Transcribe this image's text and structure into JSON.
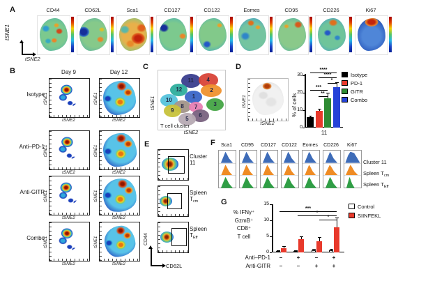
{
  "panels": {
    "a": {
      "label": "A",
      "y_axis": "tSNE1",
      "x_axis": "tSNE2",
      "markers": [
        "CD44",
        "CD62L",
        "Sca1",
        "CD127",
        "CD122",
        "Eomes",
        "CD95",
        "CD226",
        "Ki67"
      ]
    },
    "b": {
      "label": "B",
      "columns": [
        "Day 9",
        "Day 12"
      ],
      "rows": [
        "Isotype",
        "Anti–PD-1",
        "Anti-GITR",
        "Combo"
      ],
      "plot_y_axis": "tSNE1",
      "plot_x_axis": "tSNE2"
    },
    "c": {
      "label": "C",
      "y_axis": "tSNE1",
      "x_axis": "tSNE2",
      "caption": "T cell cluster",
      "clusters": [
        {
          "n": "11",
          "color": "#3a3f8f"
        },
        {
          "n": "4",
          "color": "#d94438"
        },
        {
          "n": "12",
          "color": "#2fae9e"
        },
        {
          "n": "2",
          "color": "#f0922f"
        },
        {
          "n": "1",
          "color": "#3a66c8"
        },
        {
          "n": "10",
          "color": "#57c4dd"
        },
        {
          "n": "3",
          "color": "#45a545"
        },
        {
          "n": "8",
          "color": "#a2948a"
        },
        {
          "n": "7",
          "color": "#e87fb4"
        },
        {
          "n": "9",
          "color": "#c8c23c"
        },
        {
          "n": "6",
          "color": "#7a6380"
        },
        {
          "n": "5",
          "color": "#b7aab4"
        }
      ]
    },
    "d": {
      "label": "D",
      "y_axis": "tSNE1",
      "x_axis": "tSNE2"
    },
    "e": {
      "label": "E",
      "y_axis": "CD44",
      "x_axis": "CD62L",
      "gates": [
        {
          "line1": "Cluster",
          "line2": "11",
          "sub": ""
        },
        {
          "line1": "Spleen",
          "line2": "T",
          "sub": "cm"
        },
        {
          "line1": "Spleen",
          "line2": "T",
          "sub": "Eff"
        }
      ]
    },
    "f": {
      "label": "F",
      "markers": [
        "Sca1",
        "CD95",
        "CD127",
        "CD122",
        "Eomes",
        "CD226",
        "Ki67"
      ],
      "rows": [
        {
          "main": "Cluster 11",
          "sub": ""
        },
        {
          "main": "Spleen T",
          "sub": "cm"
        },
        {
          "main": "Spleen T",
          "sub": "Eff"
        }
      ],
      "row_colors": [
        "#3e6cb8",
        "#ef8c25",
        "#2f9e45"
      ]
    },
    "g": {
      "label": "G",
      "x_rows": [
        "Anti–PD-1",
        "Anti-GITR"
      ]
    }
  },
  "chart_data": [
    {
      "type": "bar",
      "panel": "D",
      "title": "",
      "ylabel": "% of cells",
      "ylim": [
        0,
        30
      ],
      "yticks": [
        "0",
        "10",
        "20",
        "30"
      ],
      "categories": [
        "11"
      ],
      "legend_position": "right",
      "grid": false,
      "series": [
        {
          "name": "Isotype",
          "color": "#000000",
          "value": 6.2,
          "err": 0.5
        },
        {
          "name": "PD-1",
          "color": "#e8392b",
          "value": 9.6,
          "err": 1.2
        },
        {
          "name": "GITR",
          "color": "#2e8b33",
          "value": 16.8,
          "err": 3.2
        },
        {
          "name": "Combo",
          "color": "#2543d8",
          "value": 23.3,
          "err": 2.8
        }
      ],
      "significance": [
        {
          "label": "****",
          "pair": "Isotype-Combo"
        },
        {
          "label": "****",
          "pair": "PD-1-Combo"
        },
        {
          "label": "*",
          "pair": "GITR-Combo"
        },
        {
          "label": "***",
          "pair": "Isotype-GITR"
        },
        {
          "label": "**",
          "pair": "PD-1-GITR"
        }
      ]
    },
    {
      "type": "bar",
      "panel": "G",
      "title": "",
      "ylabel_lines": [
        "% IFNγ⁺",
        "GzmB⁺",
        "CD8⁺",
        "T cell"
      ],
      "ylim": [
        0,
        15
      ],
      "yticks": [
        "0",
        "5",
        "10",
        "15"
      ],
      "legend_position": "right",
      "grid": false,
      "legend": [
        {
          "label": "Control",
          "color": "#ffffff"
        },
        {
          "label": "SIINFEKL",
          "color": "#e8392b"
        }
      ],
      "groups": [
        {
          "anti_pd1": "–",
          "anti_gitr": "–",
          "control": 0.3,
          "control_err": 0.3,
          "siinfekl": 1.4,
          "siinfekl_err": 0.5
        },
        {
          "anti_pd1": "+",
          "anti_gitr": "–",
          "control": 0.4,
          "control_err": 0.2,
          "siinfekl": 4.2,
          "siinfekl_err": 0.9
        },
        {
          "anti_pd1": "–",
          "anti_gitr": "+",
          "control": 0.6,
          "control_err": 0.5,
          "siinfekl": 3.5,
          "siinfekl_err": 1.2
        },
        {
          "anti_pd1": "+",
          "anti_gitr": "+",
          "control": 0.7,
          "control_err": 0.4,
          "siinfekl": 7.8,
          "siinfekl_err": 3.0
        }
      ],
      "significance": [
        {
          "label": "***",
          "pair": "group1-group4"
        },
        {
          "label": "*",
          "pair": "group2-group4"
        },
        {
          "label": "*",
          "pair": "group3-group4"
        }
      ]
    }
  ]
}
